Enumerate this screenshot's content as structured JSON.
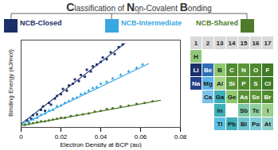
{
  "header": {
    "title": "Classification of Non-Covalent Bonding"
  },
  "chart_data": {
    "type": "scatter",
    "xlabel": "Electron Density at BCP (au)",
    "ylabel": "Binding Energy (kJ/mol)",
    "xlim": [
      0,
      0.08
    ],
    "xticks": [
      0,
      0.02,
      0.04,
      0.06,
      0.08
    ],
    "ylim": [
      0,
      100
    ],
    "yticks": [],
    "tick_labels": "x",
    "legend": "top",
    "series": [
      {
        "name": "NCB-Closed",
        "color": "#1c2f6b",
        "marker": "square",
        "x": [
          0.003,
          0.005,
          0.006,
          0.008,
          0.01,
          0.011,
          0.012,
          0.014,
          0.015,
          0.017,
          0.018,
          0.02,
          0.021,
          0.023,
          0.024,
          0.026,
          0.027,
          0.029,
          0.03,
          0.032,
          0.033,
          0.035,
          0.036,
          0.038,
          0.04,
          0.041,
          0.043,
          0.045,
          0.047,
          0.049,
          0.051
        ],
        "values": [
          8,
          10,
          14,
          15,
          20,
          24,
          19,
          28,
          26,
          33,
          36,
          38,
          44,
          42,
          48,
          50,
          55,
          53,
          60,
          58,
          66,
          64,
          70,
          72,
          75,
          80,
          78,
          86,
          84,
          92,
          95
        ],
        "trend_x": [
          0,
          0.052
        ],
        "trend_y": [
          4,
          96
        ]
      },
      {
        "name": "NCB-Intermediate",
        "color": "#3aa8e0",
        "marker": "triangle",
        "x": [
          0.004,
          0.006,
          0.008,
          0.01,
          0.012,
          0.014,
          0.016,
          0.018,
          0.02,
          0.022,
          0.024,
          0.026,
          0.028,
          0.03,
          0.032,
          0.034,
          0.036,
          0.038,
          0.04,
          0.043,
          0.046,
          0.05,
          0.054,
          0.058,
          0.061
        ],
        "values": [
          6,
          9,
          11,
          14,
          16,
          19,
          20,
          24,
          25,
          28,
          30,
          33,
          34,
          38,
          39,
          42,
          45,
          46,
          50,
          52,
          56,
          60,
          64,
          68,
          72
        ],
        "trend_x": [
          0,
          0.064
        ],
        "trend_y": [
          3,
          73
        ]
      },
      {
        "name": "NCB-Shared",
        "color": "#4f7a2c",
        "marker": "circle",
        "x": [
          0.002,
          0.004,
          0.006,
          0.008,
          0.01,
          0.012,
          0.014,
          0.016,
          0.018,
          0.02,
          0.022,
          0.025,
          0.028,
          0.031,
          0.034,
          0.037,
          0.04,
          0.043,
          0.046,
          0.05,
          0.054,
          0.058,
          0.062,
          0.066
        ],
        "values": [
          3,
          4,
          5,
          6,
          7,
          7,
          8,
          9,
          10,
          11,
          11,
          13,
          14,
          15,
          16,
          18,
          19,
          21,
          22,
          24,
          25,
          27,
          28,
          30
        ],
        "trend_x": [
          0,
          0.07
        ],
        "trend_y": [
          2,
          31
        ]
      }
    ]
  },
  "periodic_table": {
    "header": [
      1,
      2,
      13,
      14,
      15,
      16,
      17
    ],
    "rows": [
      [
        {
          "symbol": "H",
          "color": "#8fc87a"
        },
        null,
        null,
        null,
        null,
        null,
        null
      ],
      [
        {
          "symbol": "Li",
          "color": "#1c2f6b"
        },
        {
          "symbol": "Be",
          "color": "#2f6db5"
        },
        {
          "symbol": "B",
          "color": "#8ec86f"
        },
        {
          "symbol": "C",
          "color": "#4f8a2e"
        },
        {
          "symbol": "N",
          "color": "#5b9436"
        },
        {
          "symbol": "O",
          "color": "#4f8a2e"
        },
        {
          "symbol": "F",
          "color": "#3f7a26"
        }
      ],
      [
        {
          "symbol": "Na",
          "color": "#24408a"
        },
        {
          "symbol": "Mg",
          "color": "#5db3e6"
        },
        {
          "symbol": "Al",
          "color": "#a6d38a"
        },
        {
          "symbol": "Si",
          "color": "#5b9436"
        },
        {
          "symbol": "P",
          "color": "#4f8a2e"
        },
        {
          "symbol": "S",
          "color": "#4f8a2e"
        },
        {
          "symbol": "Cl",
          "color": "#3f7a26"
        }
      ],
      [
        null,
        {
          "symbol": "Ca",
          "color": "#7ac3ea"
        },
        {
          "symbol": "Ga",
          "color": "#3fb0b8"
        },
        {
          "symbol": "Ge",
          "color": "#8ec86f"
        },
        {
          "symbol": "As",
          "color": "#5b9436"
        },
        {
          "symbol": "Se",
          "color": "#5b9436"
        },
        {
          "symbol": "Br",
          "color": "#4f8a2e"
        }
      ],
      [
        null,
        null,
        {
          "symbol": "In",
          "color": "#3fb0b8"
        },
        null,
        {
          "symbol": "Sb",
          "color": "#7cc7a8"
        },
        {
          "symbol": "Te",
          "color": "#8ccfa0"
        },
        {
          "symbol": "I",
          "color": "#9ccf8c"
        }
      ],
      [
        null,
        null,
        {
          "symbol": "Tl",
          "color": "#5bc0e0"
        },
        {
          "symbol": "Pb",
          "color": "#3fb0b8"
        },
        {
          "symbol": "Bi",
          "color": "#6cc4d0"
        },
        {
          "symbol": "Po",
          "color": "#7ccbd8"
        },
        {
          "symbol": "At",
          "color": "#8fcfc8"
        }
      ]
    ]
  }
}
